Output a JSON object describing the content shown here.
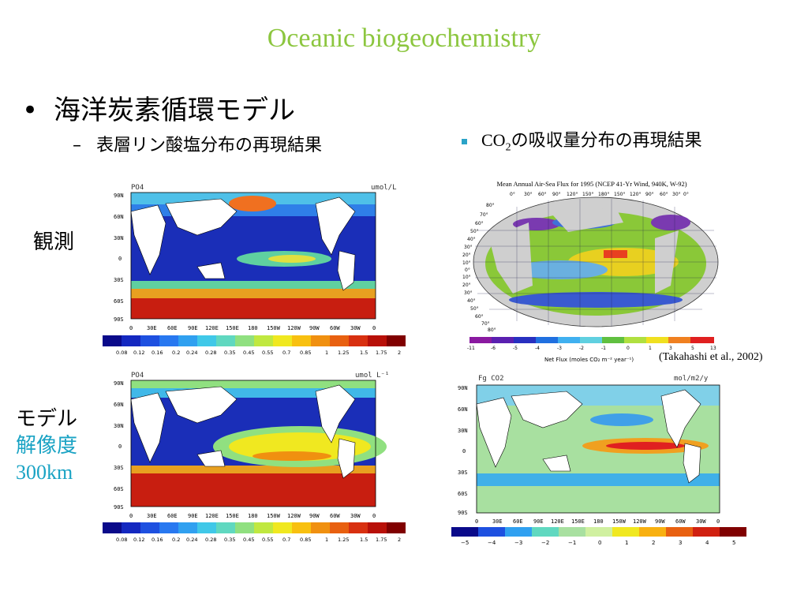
{
  "slide": {
    "title": "Oceanic biogeochemistry",
    "bullet_main": "海洋炭素循環モデル",
    "bullet_main_marker": "•",
    "sub_bullet": "表層リン酸塩分布の再現結果",
    "sub_bullet_marker": "–",
    "right_bullet_prefix": "CO",
    "right_bullet_sub": "2",
    "right_bullet_suffix": "の吸収量分布の再現結果",
    "row_label_obs": "観測",
    "row_label_model_line1": "モデル",
    "row_label_model_line2": "解像度",
    "row_label_model_line3": "300km",
    "citation": "(Takahashi et al., 2002)"
  },
  "colors": {
    "title": "#8cc63f",
    "teal_label": "#1aa3c4",
    "bullet_square": "#2aa3c7"
  },
  "po4_obs": {
    "var": "PO4",
    "unit": "umol/L",
    "lat_labels": [
      "90N",
      "60N",
      "30N",
      "0",
      "30S",
      "60S",
      "90S"
    ],
    "lon_labels": [
      "0",
      "30E",
      "60E",
      "90E",
      "120E",
      "150E",
      "180",
      "150W",
      "120W",
      "90W",
      "60W",
      "30W",
      "0"
    ],
    "colorbar": [
      "0.08",
      "0.12",
      "0.16",
      "0.2",
      "0.24",
      "0.28",
      "0.35",
      "0.45",
      "0.55",
      "0.7",
      "0.85",
      "1",
      "1.25",
      "1.5",
      "1.75",
      "2"
    ]
  },
  "po4_model": {
    "var": "PO4",
    "unit": "umol L⁻¹",
    "lat_labels": [
      "90N",
      "60N",
      "30N",
      "0",
      "30S",
      "60S",
      "90S"
    ],
    "lon_labels": [
      "0",
      "30E",
      "60E",
      "90E",
      "120E",
      "150E",
      "180",
      "150W",
      "120W",
      "90W",
      "60W",
      "30W",
      "0"
    ],
    "colorbar": [
      "0.08",
      "0.12",
      "0.16",
      "0.2",
      "0.24",
      "0.28",
      "0.35",
      "0.45",
      "0.55",
      "0.7",
      "0.85",
      "1",
      "1.25",
      "1.5",
      "1.75",
      "2"
    ]
  },
  "flux_obs": {
    "title": "Mean Annual Air-Sea Flux for 1995 (NCEP 41-Yr Wind, 940K, W-92)",
    "top_lon": [
      "0°",
      "30°",
      "60°",
      "90°",
      "120°",
      "150°",
      "180°",
      "150°",
      "120°",
      "90°",
      "60°",
      "30°",
      "0°"
    ],
    "lat_left": [
      "80°",
      "70°",
      "60°",
      "50°",
      "40°",
      "30°",
      "20°",
      "10°",
      "0°",
      "10°",
      "20°",
      "30°",
      "40°",
      "50°",
      "60°",
      "70°",
      "80°"
    ],
    "colorbar": [
      "-11",
      "-6",
      "-5",
      "-4",
      "-3",
      "-2",
      "-1",
      "0",
      "1",
      "3",
      "5",
      "13"
    ],
    "axis_label": "Net Flux (moles CO₂ m⁻² year⁻¹)"
  },
  "flux_model": {
    "var": "Fg CO2",
    "unit": "mol/m2/y",
    "lat_labels": [
      "90N",
      "60N",
      "30N",
      "0",
      "30S",
      "60S",
      "90S"
    ],
    "lon_labels": [
      "0",
      "30E",
      "60E",
      "90E",
      "120E",
      "150E",
      "180",
      "150W",
      "120W",
      "90W",
      "60W",
      "30W",
      "0"
    ],
    "colorbar": [
      "−5",
      "−4",
      "−3",
      "−2",
      "−1",
      "0",
      "1",
      "2",
      "3",
      "4",
      "5"
    ]
  }
}
